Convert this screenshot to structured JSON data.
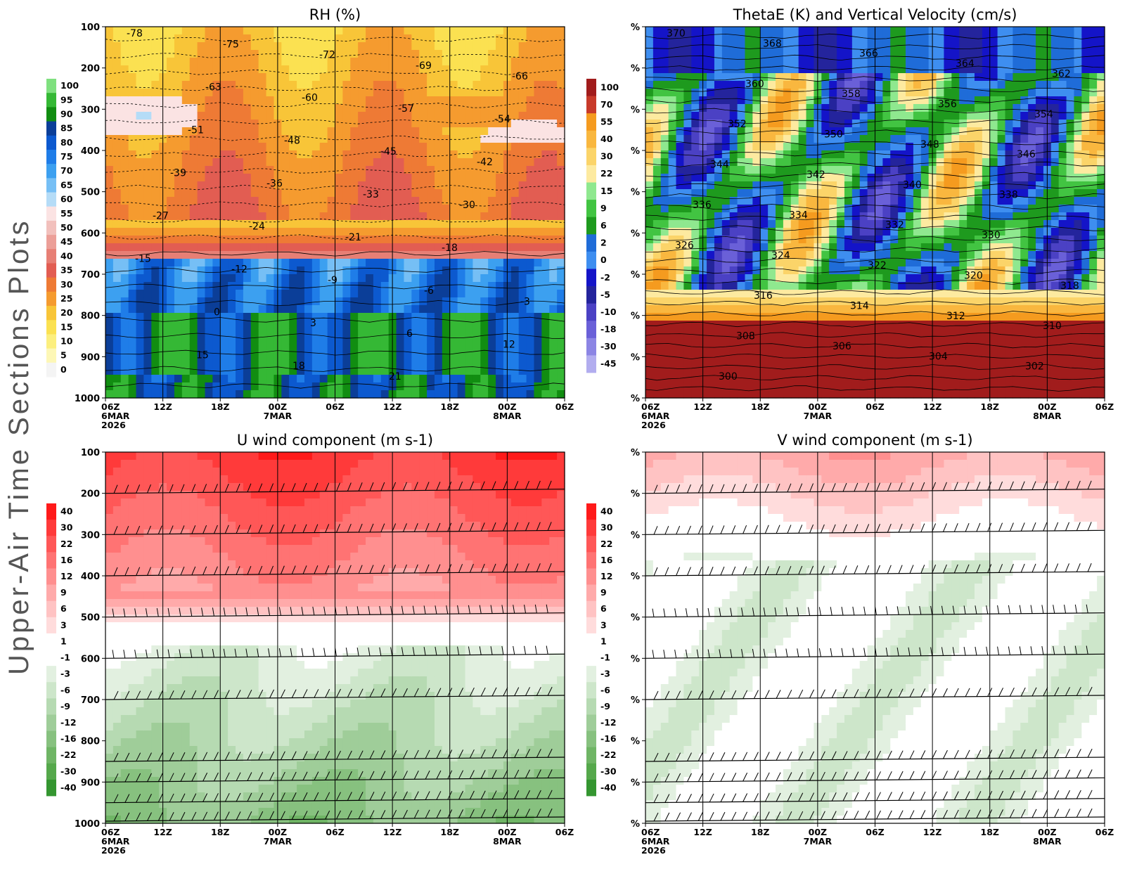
{
  "page_title": "Upper-Air Time Sections Plots",
  "x_axis": {
    "ticks": [
      {
        "lines": [
          "06Z",
          "6MAR",
          "2026"
        ]
      },
      {
        "lines": [
          "12Z"
        ]
      },
      {
        "lines": [
          "18Z"
        ]
      },
      {
        "lines": [
          "00Z",
          "7MAR"
        ]
      },
      {
        "lines": [
          "06Z"
        ]
      },
      {
        "lines": [
          "12Z"
        ]
      },
      {
        "lines": [
          "18Z"
        ]
      },
      {
        "lines": [
          "00Z",
          "8MAR"
        ]
      },
      {
        "lines": [
          "06Z"
        ]
      }
    ]
  },
  "chart_data": [
    {
      "id": "rh",
      "type": "heatmap",
      "title": "RH (%)",
      "y_ticks": [
        "100",
        "200",
        "300",
        "400",
        "500",
        "600",
        "700",
        "800",
        "900",
        "1000"
      ],
      "ylim": [
        100,
        1000
      ],
      "y_inverted": true,
      "colorbar": {
        "labels": [
          "100",
          "95",
          "90",
          "85",
          "80",
          "75",
          "70",
          "65",
          "60",
          "55",
          "50",
          "45",
          "40",
          "35",
          "30",
          "25",
          "20",
          "15",
          "10",
          "5",
          "0"
        ],
        "colors": [
          "#7fe07f",
          "#35b835",
          "#118d11",
          "#0b3e98",
          "#0c59cf",
          "#1f7de8",
          "#3ca0f0",
          "#76bff5",
          "#b5dcf7",
          "#fbe3e3",
          "#f2c0bc",
          "#ec9f98",
          "#e77f75",
          "#e25d52",
          "#ee7a35",
          "#f59b2f",
          "#f8c538",
          "#fbe151",
          "#fcef7e",
          "#fdf7b6",
          "#f4f4f4"
        ]
      },
      "contour_labels": [
        "-78",
        "-75",
        "-72",
        "-69",
        "-66",
        "-63",
        "-60",
        "-57",
        "-54",
        "-51",
        "-48",
        "-45",
        "-42",
        "-39",
        "-36",
        "-33",
        "-30",
        "-27",
        "-24",
        "-21",
        "-18",
        "-15",
        "-12",
        "-9",
        "-6",
        "-3",
        "0",
        "3",
        "6",
        "12",
        "15",
        "18",
        "21"
      ]
    },
    {
      "id": "thetae",
      "type": "heatmap",
      "title": "ThetaE (K) and Vertical Velocity (cm/s)",
      "y_ticks": [
        "%",
        "%",
        "%",
        "%",
        "%",
        "%",
        "%",
        "%",
        "%",
        "%"
      ],
      "colorbar": {
        "labels": [
          "100",
          "70",
          "55",
          "40",
          "30",
          "22",
          "15",
          "9",
          "6",
          "2",
          "0",
          "-2",
          "-5",
          "-10",
          "-18",
          "-30",
          "-45"
        ],
        "colors": [
          "#a11c1c",
          "#c83a2a",
          "#f59b1f",
          "#f9b73f",
          "#fbd469",
          "#fdeaa0",
          "#8fe88f",
          "#42c442",
          "#1e9a1e",
          "#1f6cd8",
          "#3e8ef0",
          "#1414c8",
          "#24249c",
          "#4b41c4",
          "#6a60d8",
          "#8c85e4",
          "#b2adef"
        ]
      },
      "contour_labels": [
        "370",
        "368",
        "366",
        "364",
        "362",
        "360",
        "358",
        "356",
        "354",
        "352",
        "350",
        "348",
        "346",
        "344",
        "342",
        "340",
        "338",
        "336",
        "334",
        "332",
        "330",
        "326",
        "324",
        "322",
        "320",
        "318",
        "316",
        "314",
        "312",
        "310",
        "308",
        "306",
        "304",
        "302",
        "300"
      ]
    },
    {
      "id": "uwind",
      "type": "heatmap",
      "title": "U wind component (m s-1)",
      "y_ticks": [
        "100",
        "200",
        "300",
        "400",
        "500",
        "600",
        "700",
        "800",
        "900",
        "1000"
      ],
      "ylim": [
        100,
        1000
      ],
      "y_inverted": true,
      "colorbar": {
        "labels": [
          "40",
          "30",
          "22",
          "16",
          "12",
          "9",
          "6",
          "3",
          "1",
          "-1",
          "-3",
          "-6",
          "-9",
          "-12",
          "-16",
          "-22",
          "-30",
          "-40"
        ],
        "colors": [
          "#ff1a1a",
          "#ff3a3a",
          "#ff5757",
          "#ff7373",
          "#ff8f8f",
          "#ffaaaa",
          "#ffc3c3",
          "#ffdcdc",
          "#ffffff",
          "#ffffff",
          "#e2f0e0",
          "#cde6ca",
          "#b6dab2",
          "#9fcd99",
          "#87c17f",
          "#6fb565",
          "#55a84b",
          "#349630"
        ]
      },
      "barb_levels": [
        "200",
        "300",
        "400",
        "500",
        "600",
        "700",
        "850",
        "900",
        "950",
        "1000"
      ]
    },
    {
      "id": "vwind",
      "type": "heatmap",
      "title": "V wind component (m s-1)",
      "y_ticks": [
        "%",
        "%",
        "%",
        "%",
        "%",
        "%",
        "%",
        "%",
        "%",
        "%"
      ],
      "colorbar": {
        "labels": [
          "40",
          "30",
          "22",
          "16",
          "12",
          "9",
          "6",
          "3",
          "1",
          "-1",
          "-3",
          "-6",
          "-9",
          "-12",
          "-16",
          "-22",
          "-30",
          "-40"
        ],
        "colors": [
          "#ff1a1a",
          "#ff3a3a",
          "#ff5757",
          "#ff7373",
          "#ff8f8f",
          "#ffaaaa",
          "#ffc3c3",
          "#ffdcdc",
          "#ffffff",
          "#ffffff",
          "#e2f0e0",
          "#cde6ca",
          "#b6dab2",
          "#9fcd99",
          "#87c17f",
          "#6fb565",
          "#55a84b",
          "#349630"
        ]
      }
    }
  ]
}
